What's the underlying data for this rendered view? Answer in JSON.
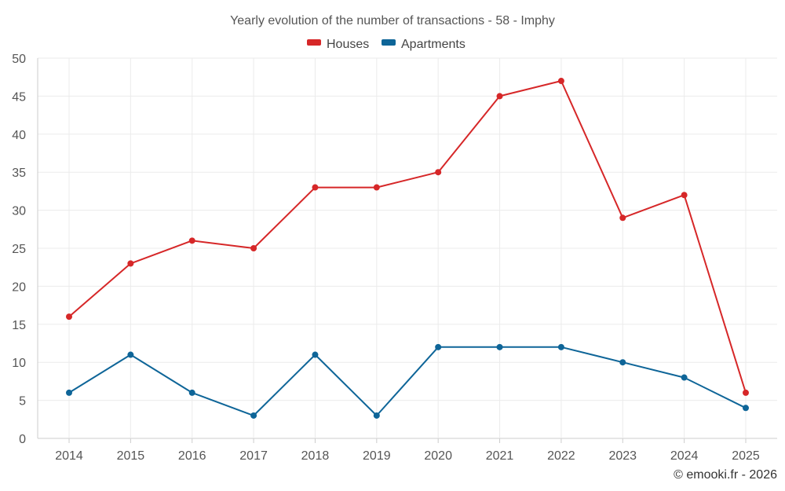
{
  "chart_data": {
    "type": "line",
    "title": "Yearly evolution of the number of transactions - 58 - Imphy",
    "categories": [
      "2014",
      "2015",
      "2016",
      "2017",
      "2018",
      "2019",
      "2020",
      "2021",
      "2022",
      "2023",
      "2024",
      "2025"
    ],
    "series": [
      {
        "name": "Houses",
        "color": "#d62728",
        "values": [
          16,
          23,
          26,
          25,
          33,
          33,
          35,
          45,
          47,
          29,
          32,
          6
        ]
      },
      {
        "name": "Apartments",
        "color": "#0e6598",
        "values": [
          6,
          11,
          6,
          3,
          11,
          3,
          12,
          12,
          12,
          10,
          8,
          4
        ]
      }
    ],
    "ylim": [
      0,
      50
    ],
    "yticks": [
      0,
      5,
      10,
      15,
      20,
      25,
      30,
      35,
      40,
      45,
      50
    ],
    "legend_position": "top-center",
    "grid": true,
    "xlabel": "",
    "ylabel": ""
  },
  "credit": "© emooki.fr - 2026"
}
